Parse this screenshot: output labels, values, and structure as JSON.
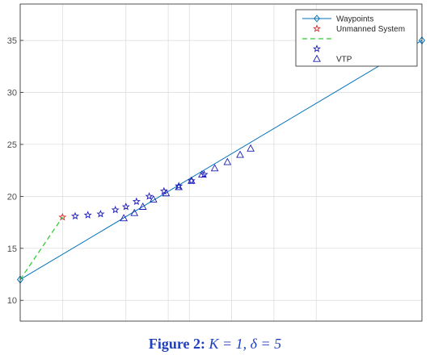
{
  "chart_data": {
    "type": "line",
    "title": "",
    "xlabel": "",
    "ylabel": "",
    "xlim": [
      0,
      19
    ],
    "ylim": [
      8,
      38.5
    ],
    "yticks": [
      10,
      15,
      20,
      25,
      30,
      35
    ],
    "xgrid": [
      0,
      2,
      5,
      7,
      8,
      10,
      12,
      14,
      19
    ],
    "grid": true,
    "legend_position": "top-right",
    "series": [
      {
        "name": "Waypoints",
        "kind": "line-diamond-markers",
        "color": "#0072BD",
        "points": [
          [
            0,
            12
          ],
          [
            19,
            35
          ]
        ]
      },
      {
        "name": "Unmanned System",
        "kind": "star-marker",
        "color": "#D62728",
        "points": [
          [
            2,
            18
          ]
        ]
      },
      {
        "name": "",
        "kind": "dashed-line",
        "color": "#33CC33",
        "points": [
          [
            0,
            12
          ],
          [
            2,
            18
          ]
        ]
      },
      {
        "name": "",
        "kind": "star-marker",
        "color": "#1A1AB3",
        "points": [
          [
            2.6,
            18.1
          ],
          [
            3.2,
            18.2
          ],
          [
            3.8,
            18.3
          ],
          [
            4.5,
            18.7
          ],
          [
            5.0,
            19.0
          ],
          [
            5.5,
            19.5
          ],
          [
            6.1,
            20.0
          ],
          [
            6.8,
            20.5
          ],
          [
            7.5,
            21.0
          ],
          [
            8.1,
            21.5
          ],
          [
            8.7,
            22.1
          ]
        ]
      },
      {
        "name": "VTP",
        "kind": "triangle-marker",
        "color": "#1A1AB3",
        "points": [
          [
            4.9,
            17.9
          ],
          [
            5.4,
            18.4
          ],
          [
            5.8,
            19.0
          ],
          [
            6.3,
            19.7
          ],
          [
            6.9,
            20.3
          ],
          [
            7.5,
            20.9
          ],
          [
            8.1,
            21.5
          ],
          [
            8.6,
            22.1
          ],
          [
            9.2,
            22.7
          ],
          [
            9.8,
            23.3
          ],
          [
            10.4,
            24.0
          ],
          [
            10.9,
            24.6
          ]
        ]
      }
    ]
  },
  "caption": {
    "label": "Figure 2:",
    "equation": "K = 1, δ = 5"
  }
}
